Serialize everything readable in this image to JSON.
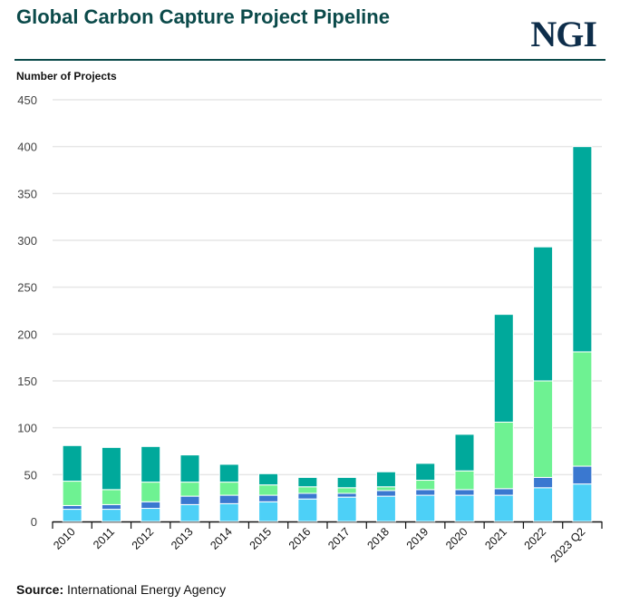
{
  "header": {
    "title": "Global Carbon Capture Project Pipeline",
    "logo": "NGI"
  },
  "source": {
    "label": "Source:",
    "text": "International Energy Agency"
  },
  "chart_data": {
    "type": "bar",
    "stacked": true,
    "title": "Global Carbon Capture Project Pipeline",
    "ylabel": "Number of Projects",
    "xlabel": "",
    "ylim": [
      0,
      450
    ],
    "yticks": [
      0,
      50,
      100,
      150,
      200,
      250,
      300,
      350,
      400,
      450
    ],
    "grid": true,
    "categories": [
      "2010",
      "2011",
      "2012",
      "2013",
      "2014",
      "2015",
      "2016",
      "2017",
      "2018",
      "2019",
      "2020",
      "2021",
      "2022",
      "2023 Q2"
    ],
    "series": [
      {
        "color": "#4dd0f7",
        "values": [
          13,
          13,
          14,
          18,
          19,
          21,
          24,
          26,
          27,
          28,
          28,
          28,
          36,
          40
        ]
      },
      {
        "color": "#3a78d0",
        "values": [
          4,
          5,
          7,
          9,
          9,
          7,
          6,
          4,
          6,
          6,
          6,
          7,
          11,
          19
        ]
      },
      {
        "color": "#6ef292",
        "values": [
          26,
          16,
          21,
          15,
          14,
          11,
          7,
          6,
          4,
          10,
          20,
          71,
          103,
          122
        ]
      },
      {
        "color": "#00a99b",
        "values": [
          38,
          45,
          38,
          29,
          19,
          12,
          10,
          11,
          16,
          18,
          39,
          115,
          143,
          219
        ]
      }
    ]
  }
}
